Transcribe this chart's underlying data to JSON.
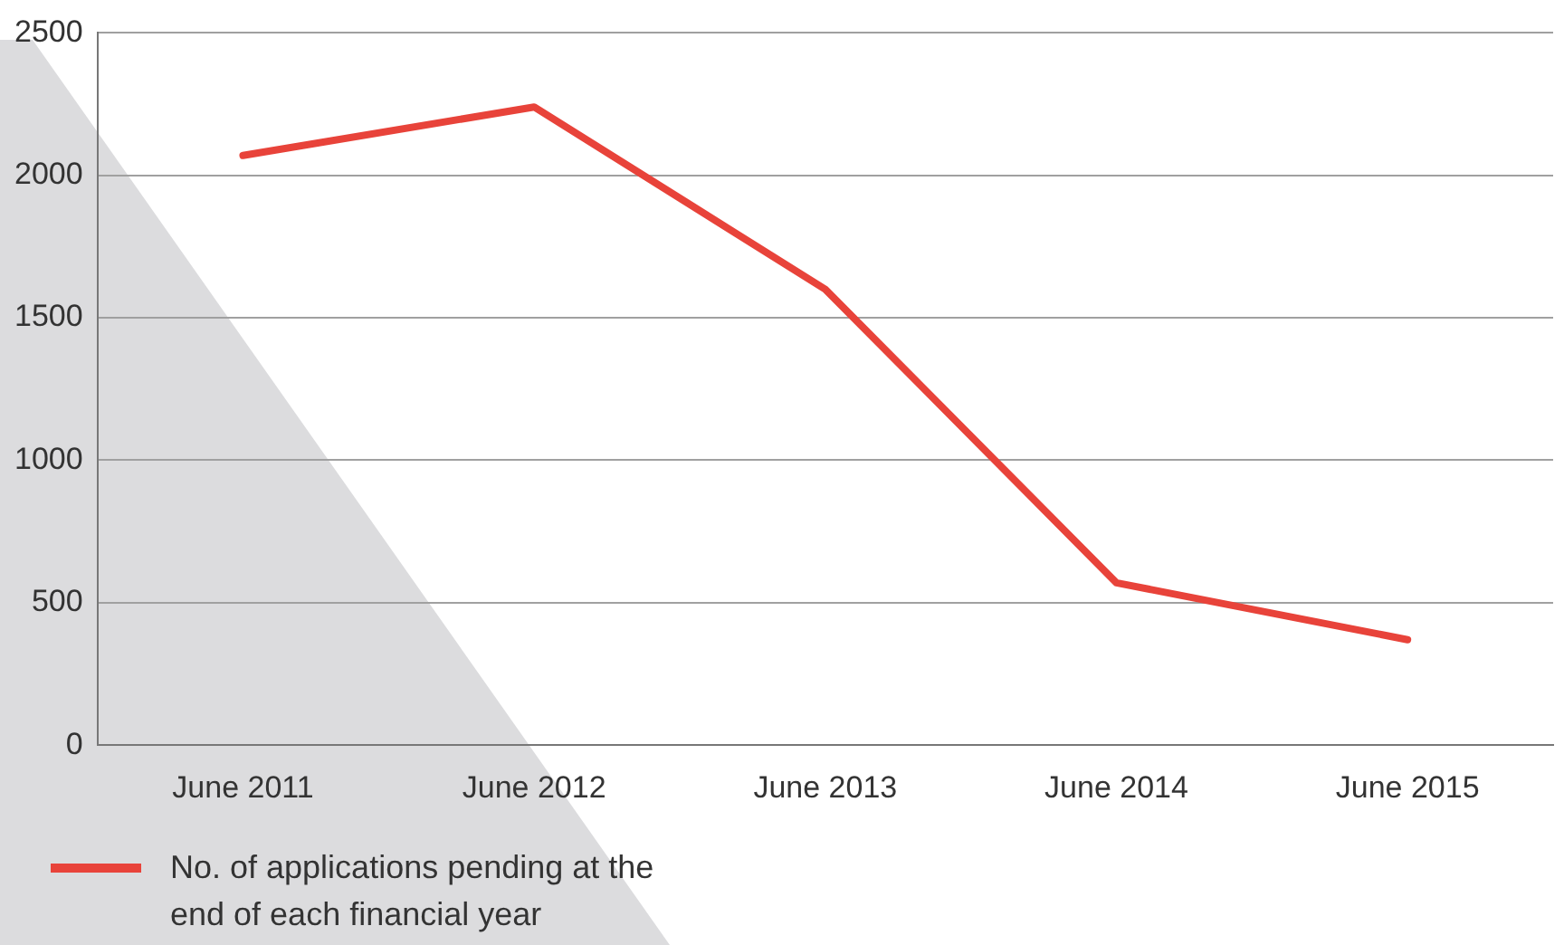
{
  "chart_data": {
    "type": "line",
    "categories": [
      "June 2011",
      "June 2012",
      "June 2013",
      "June 2014",
      "June 2015"
    ],
    "series": [
      {
        "name": "No. of applications pending at the end of each financial year",
        "color": "#e8433a",
        "values": [
          2070,
          2240,
          1600,
          570,
          370
        ]
      }
    ],
    "ylim": [
      0,
      2500
    ],
    "yticks": [
      0,
      500,
      1000,
      1500,
      2000,
      2500
    ],
    "grid": "y",
    "legend": "bottom left",
    "marker": "none",
    "line_style": "solid"
  }
}
